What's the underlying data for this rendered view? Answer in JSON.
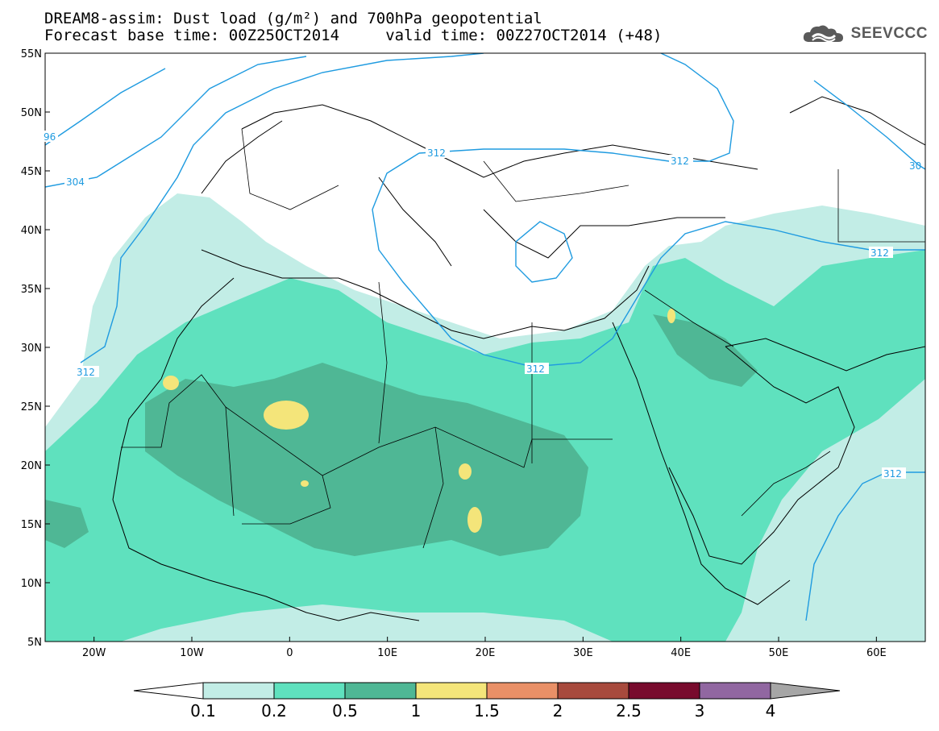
{
  "title": {
    "line1": "DREAM8-assim: Dust load (g/m²) and 700hPa geopotential",
    "line2": "Forecast base time: 00Z25OCT2014     valid time: 00Z27OCT2014 (+48)"
  },
  "brand": {
    "name": "SEEVCCC",
    "icon": "cloud-logo-icon"
  },
  "map": {
    "projection": "lat-lon",
    "lon_range": [
      -25,
      65
    ],
    "lat_range": [
      5,
      55
    ],
    "lat_ticks": [
      {
        "value": 55,
        "label": "55N"
      },
      {
        "value": 50,
        "label": "50N"
      },
      {
        "value": 45,
        "label": "45N"
      },
      {
        "value": 40,
        "label": "40N"
      },
      {
        "value": 35,
        "label": "35N"
      },
      {
        "value": 30,
        "label": "30N"
      },
      {
        "value": 25,
        "label": "25N"
      },
      {
        "value": 20,
        "label": "20N"
      },
      {
        "value": 15,
        "label": "15N"
      },
      {
        "value": 10,
        "label": "10N"
      },
      {
        "value": 5,
        "label": "5N"
      }
    ],
    "lon_ticks": [
      {
        "value": -20,
        "label": "20W"
      },
      {
        "value": -10,
        "label": "10W"
      },
      {
        "value": 0,
        "label": "0"
      },
      {
        "value": 10,
        "label": "10E"
      },
      {
        "value": 20,
        "label": "20E"
      },
      {
        "value": 30,
        "label": "30E"
      },
      {
        "value": 40,
        "label": "40E"
      },
      {
        "value": 50,
        "label": "50E"
      },
      {
        "value": 60,
        "label": "60E"
      }
    ],
    "contour_labels": [
      "96",
      "304",
      "312",
      "312",
      "312",
      "312",
      "312",
      "312",
      "30"
    ],
    "colors": {
      "contour": "#1f9be0",
      "border": "#000000"
    }
  },
  "legend": {
    "labels": [
      "0.1",
      "0.2",
      "0.5",
      "1",
      "1.5",
      "2",
      "2.5",
      "3",
      "4"
    ],
    "colors": [
      "#ffffff",
      "#c2ede6",
      "#5fe1be",
      "#4fb795",
      "#f4e57a",
      "#e99067",
      "#a74a3d",
      "#780b2d",
      "#9167a1",
      "#a6a6a6"
    ]
  }
}
